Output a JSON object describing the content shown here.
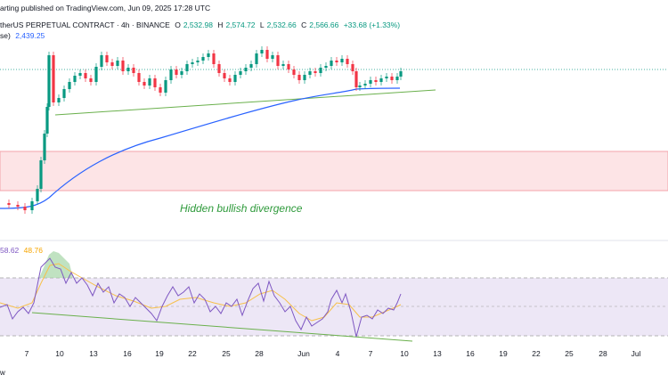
{
  "header": {
    "published_line": "arting published on TradingView.com, Jun 09, 2025 17:28 UTC",
    "symbol_line": "therUS PERPETUAL CONTRACT · 4h · BINANCE",
    "ohlc": {
      "o_label": "O",
      "o": "2,532.98",
      "h_label": "H",
      "h": "2,574.72",
      "l_label": "L",
      "l": "2,532.66",
      "c_label": "C",
      "c": "2,566.66",
      "change": "+33.68 (+1.33%)"
    },
    "ma_line": {
      "label": "se)",
      "value": "2,439.25"
    }
  },
  "rsi": {
    "value": "58.62",
    "ma_value": "48.76"
  },
  "annotation": "Hidden bullish divergence",
  "x_axis": [
    "7",
    "10",
    "13",
    "16",
    "19",
    "22",
    "25",
    "28",
    "Jun",
    "4",
    "7",
    "10",
    "13",
    "16",
    "19",
    "22",
    "25",
    "28",
    "Jul"
  ],
  "brand_text": "w",
  "colors": {
    "up": "#089981",
    "down": "#f23645",
    "ma": "#2962ff",
    "trendline": "#4caf50",
    "zone_fill": "#fde4e6",
    "zone_border": "#f23645",
    "rsi_line": "#7e57c2",
    "rsi_ma": "#f7c04a",
    "rsi_band": "#ede7f6"
  }
}
